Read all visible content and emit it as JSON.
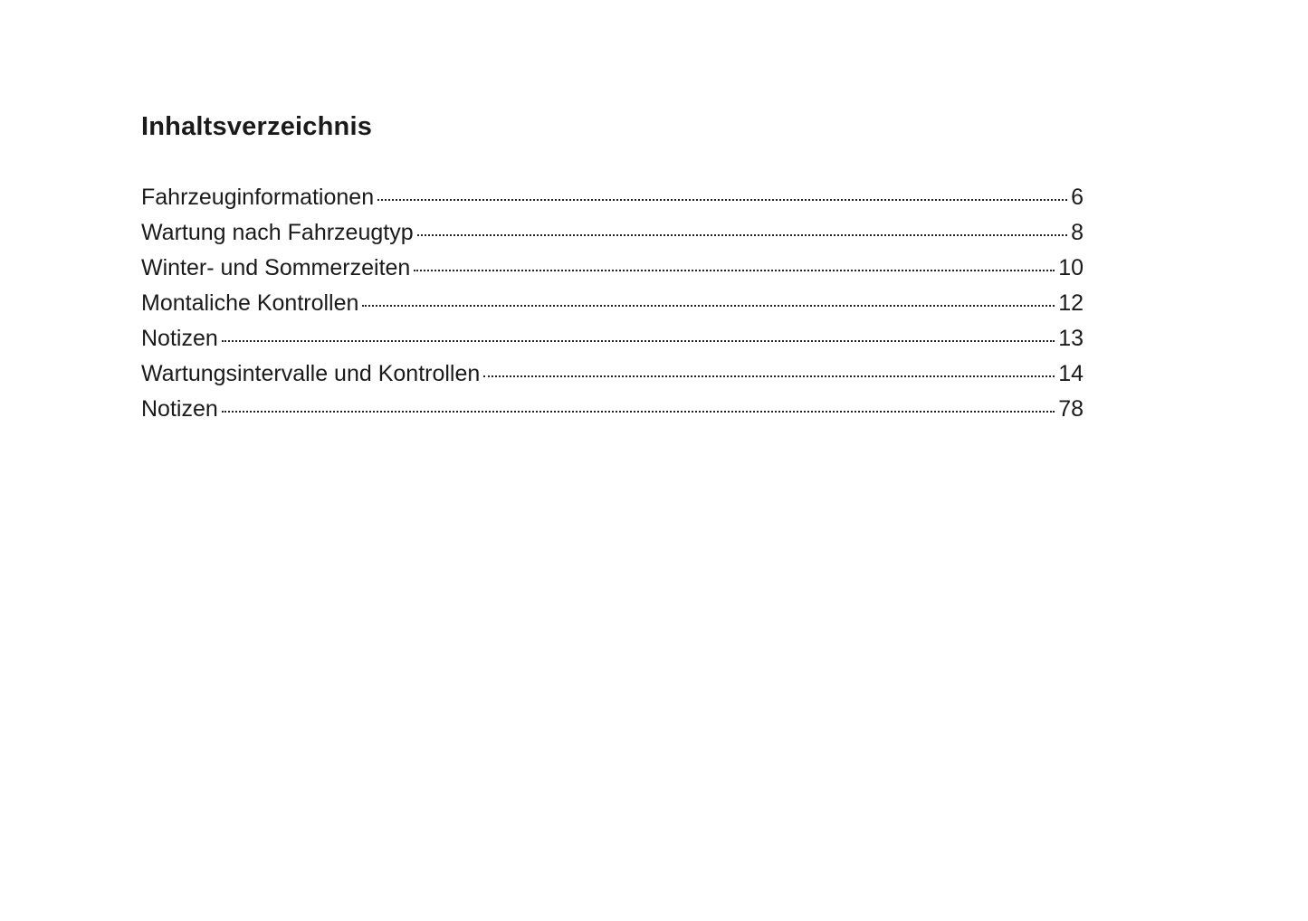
{
  "document": {
    "title": "Inhaltsverzeichnis",
    "entries": [
      {
        "label": "Fahrzeuginformationen",
        "page": "6"
      },
      {
        "label": "Wartung nach Fahrzeugtyp",
        "page": "8"
      },
      {
        "label": "Winter- und Sommerzeiten",
        "page": "10"
      },
      {
        "label": "Montaliche Kontrollen",
        "page": "12"
      },
      {
        "label": "Notizen",
        "page": "13"
      },
      {
        "label": "Wartungsintervalle und Kontrollen",
        "page": "14"
      },
      {
        "label": "Notizen",
        "page": "78"
      }
    ]
  }
}
